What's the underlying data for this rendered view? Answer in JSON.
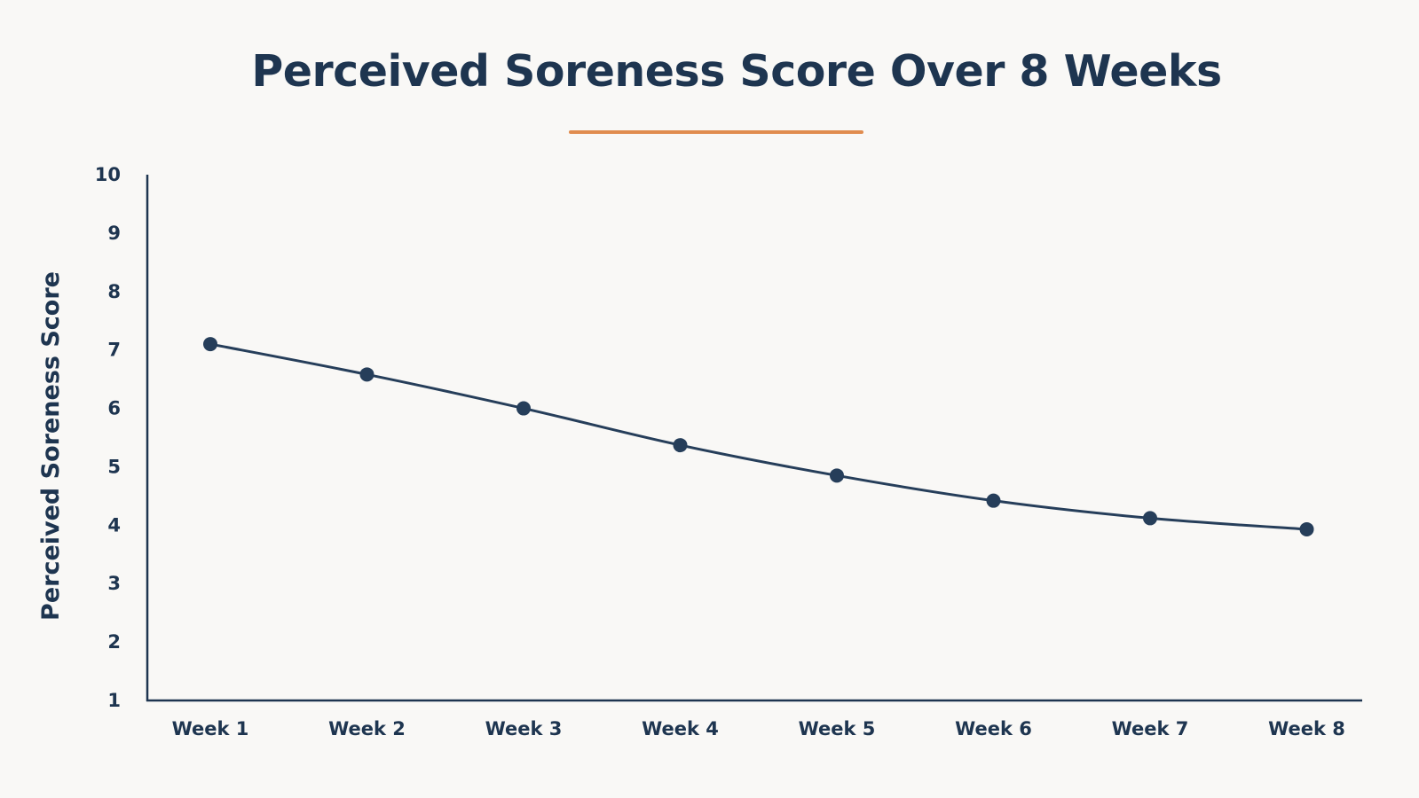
{
  "chart_data": {
    "type": "line",
    "title": "Perceived Soreness Score Over 8 Weeks",
    "xlabel": "",
    "ylabel": "Perceived Soreness Score",
    "categories": [
      "Week 1",
      "Week 2",
      "Week 3",
      "Week 4",
      "Week 5",
      "Week 6",
      "Week 7",
      "Week 8"
    ],
    "series": [
      {
        "values": [
          7.1,
          6.58,
          6.0,
          5.37,
          4.85,
          4.42,
          4.12,
          3.93
        ]
      }
    ],
    "ylim": [
      1,
      10
    ],
    "yticks": [
      "1",
      "2",
      "3",
      "4",
      "5",
      "6",
      "7",
      "8",
      "9",
      "10"
    ],
    "grid": false,
    "legend": "none"
  },
  "colors": {
    "line": "#263e5a",
    "marker": "#263e5a",
    "axis": "#1e3550",
    "text": "#1e3550",
    "accent": "#e08c4f",
    "background": "#f9f8f6"
  }
}
